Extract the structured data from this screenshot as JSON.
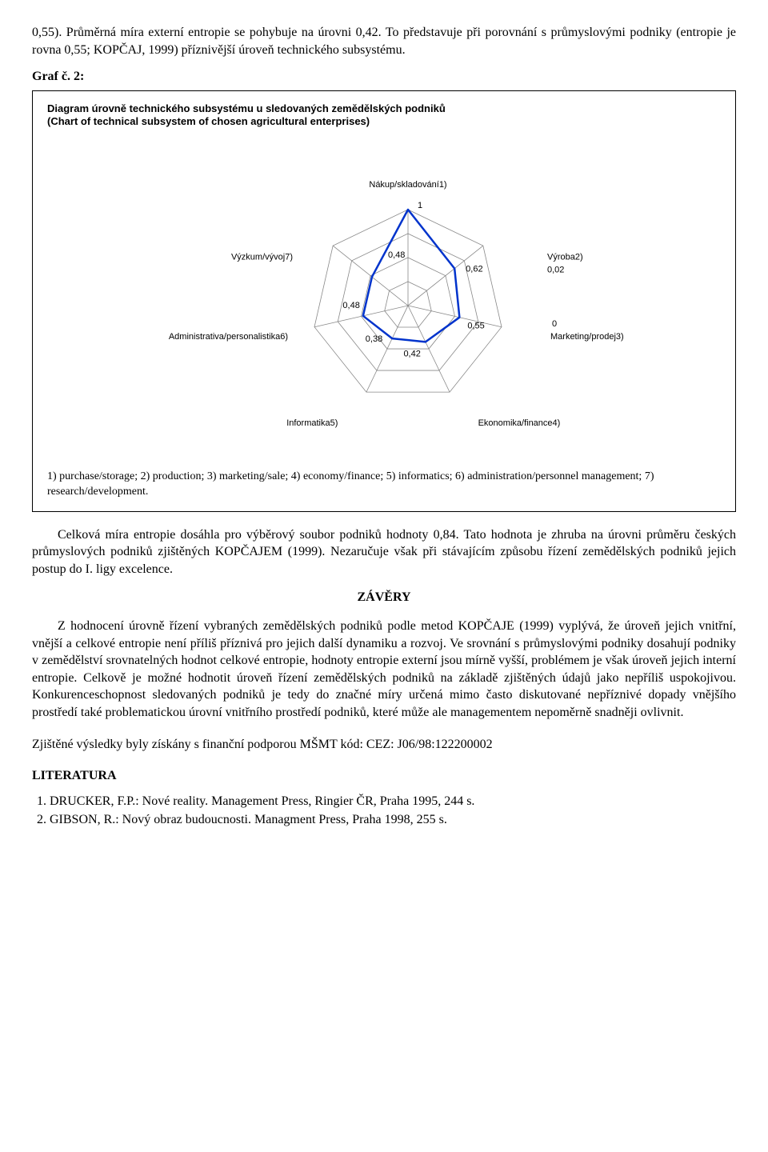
{
  "para_intro": "0,55). Průměrná míra externí entropie se pohybuje na úrovni 0,42. To představuje při porovnání s průmyslovými podniky (entropie je rovna 0,55; KOPČAJ, 1999) příznivější úroveň technického subsystému.",
  "graf_label": "Graf č. 2:",
  "chart": {
    "title_cz": "Diagram úrovně technického subsystému u sledovaných zemědělských podniků",
    "title_en": "(Chart of technical subsystem of chosen agricultural enterprises)",
    "axes": [
      {
        "label": "Nákup/skladování1)",
        "outer_label": ""
      },
      {
        "label": "Výroba2)",
        "outer_label": "0,02"
      },
      {
        "label": "Marketing/prodej3)",
        "outer_label": "0"
      },
      {
        "label": "Ekonomika/finance4)",
        "outer_label": ""
      },
      {
        "label": "Informatika5)",
        "outer_label": ""
      },
      {
        "label": "Administrativa/personalistika6)",
        "outer_label": ""
      },
      {
        "label": "Výzkum/vývoj7)",
        "outer_label": ""
      }
    ],
    "values": [
      1,
      0.62,
      0.55,
      0.42,
      0.38,
      0.48,
      0.48
    ],
    "value_labels": [
      "1",
      "0,62",
      "0,55",
      "0,42",
      "0,38",
      "0,48",
      "0,48"
    ],
    "line_color": "#0033cc",
    "line_width": 2.5,
    "grid_color": "#888888",
    "grid_width": 0.8,
    "background_color": "#ffffff",
    "label_fontsize": 11,
    "value_fontsize": 11,
    "caption": "1) purchase/storage; 2) production; 3) marketing/sale; 4) economy/finance; 5) informatics; 6) administration/personnel management; 7) research/development."
  },
  "para_after_chart": "Celková míra entropie dosáhla pro výběrový soubor podniků hodnoty 0,84. Tato hodnota je zhruba na úrovni průměru českých průmyslových podniků zjištěných KOPČAJEM (1999). Nezaručuje však při stávajícím způsobu řízení zemědělských podniků jejich postup do I. ligy excelence.",
  "zavery_heading": "ZÁVĚRY",
  "para_zavery": "Z hodnocení úrovně řízení vybraných zemědělských podniků podle metod KOPČAJE (1999) vyplývá, že úroveň jejich vnitřní, vnější a celkové entropie není příliš příznivá pro jejich další dynamiku a rozvoj. Ve srovnání s průmyslovými podniky dosahují podniky v zemědělství srovnatelných hodnot celkové entropie, hodnoty entropie externí jsou mírně vyšší, problémem je však úroveň jejich interní entropie. Celkově je možné hodnotit úroveň řízení zemědělských podniků na základě zjištěných údajů jako nepříliš uspokojivou. Konkurenceschopnost sledovaných podniků je tedy do značné míry určená mimo často diskutované nepříznivé dopady vnějšího prostředí také problematickou úrovní vnitřního prostředí podniků, které může ale managementem nepoměrně snadněji ovlivnit.",
  "acknowledgement": "Zjištěné výsledky byly získány s finanční podporou MŠMT  kód: CEZ: J06/98:122200002",
  "literatura_heading": "LITERATURA",
  "refs": [
    "DRUCKER, F.P.: Nové reality. Management Press, Ringier ČR, Praha 1995, 244 s.",
    "GIBSON, R.: Nový obraz budoucnosti. Managment Press, Praha 1998, 255 s."
  ]
}
